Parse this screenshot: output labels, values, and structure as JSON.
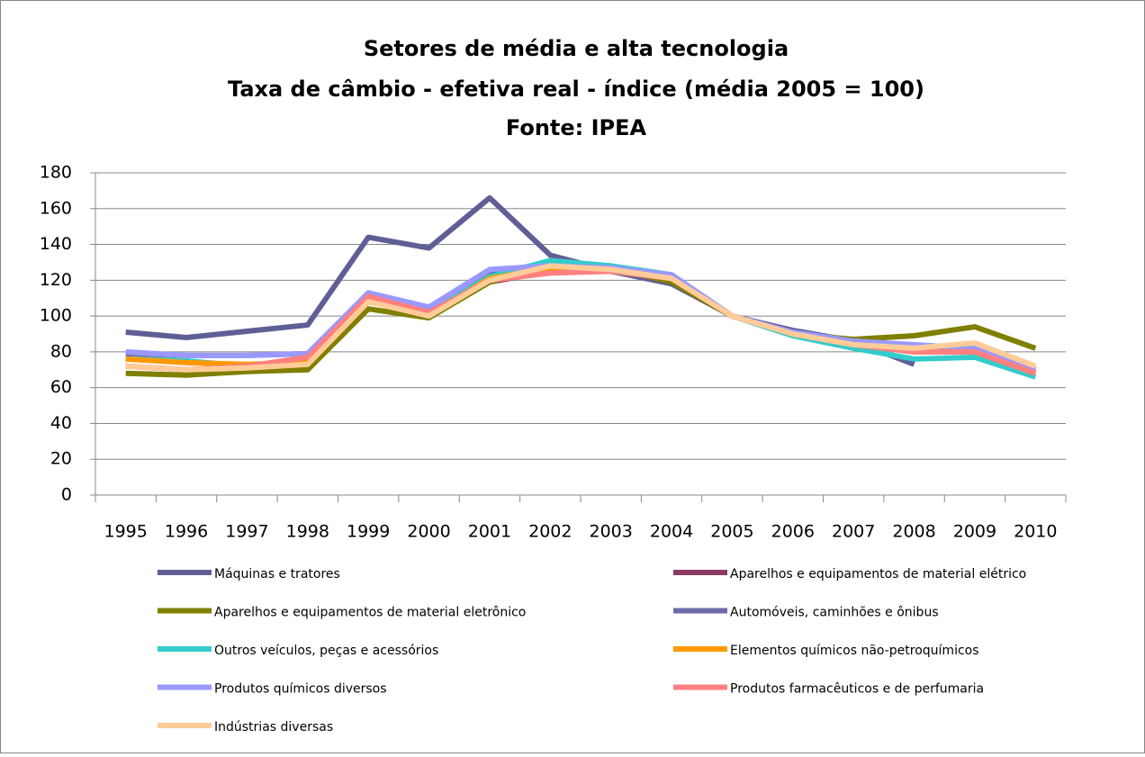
{
  "chart_data": {
    "type": "line",
    "title": [
      "Setores de média e alta tecnologia",
      "Taxa de câmbio - efetiva real - índice (média 2005 = 100)",
      "Fonte: IPEA"
    ],
    "categories": [
      "1995",
      "1996",
      "1997",
      "1998",
      "1999",
      "2000",
      "2001",
      "2002",
      "2003",
      "2004",
      "2005",
      "2006",
      "2007",
      "2008",
      "2009",
      "2010"
    ],
    "ylim": [
      0,
      180
    ],
    "yticks": [
      0,
      20,
      40,
      60,
      80,
      100,
      120,
      140,
      160,
      180
    ],
    "grid": true,
    "series": [
      {
        "name": "Máquinas e  tratores",
        "color": "#5f5f96",
        "values": [
          91,
          88,
          91.5,
          95,
          144,
          138,
          166,
          134,
          125,
          118,
          100,
          92,
          86,
          73,
          null,
          null
        ]
      },
      {
        "name": "Aparelhos e equipamentos de material elétrico",
        "color": "#8b3a62",
        "values": [
          72,
          70,
          71,
          74,
          109,
          100,
          119,
          125,
          126,
          121,
          100,
          90,
          84,
          80,
          80,
          68
        ]
      },
      {
        "name": "Aparelhos e equipamentos  de material eletrônico",
        "color": "#7f7f00",
        "values": [
          68,
          67,
          69,
          70,
          104,
          99,
          119,
          128,
          127,
          119,
          100,
          90,
          87,
          89,
          94,
          82
        ]
      },
      {
        "name": "Automóveis, caminhões e  ônibus",
        "color": "#6b6ba8",
        "values": [
          79,
          78,
          78,
          79,
          112,
          104,
          125,
          129,
          128,
          123,
          100,
          90,
          86,
          82,
          82,
          70
        ]
      },
      {
        "name": "Outros veículos, peças e  acessórios",
        "color": "#33cccc",
        "values": [
          76,
          75,
          72,
          76,
          111,
          102,
          122,
          131,
          128,
          123,
          100,
          89,
          82,
          76,
          77,
          66
        ]
      },
      {
        "name": "Elementos químicos não-petroquímicos",
        "color": "#ff9900",
        "values": [
          76,
          74,
          73,
          74,
          108,
          101,
          121,
          127,
          126,
          121,
          100,
          90,
          84,
          80,
          80,
          68
        ]
      },
      {
        "name": "Produtos químicos diversos",
        "color": "#9999ff",
        "values": [
          80,
          78,
          78,
          79,
          113,
          105,
          126,
          128,
          127,
          123,
          100,
          91,
          86,
          84,
          82,
          70
        ]
      },
      {
        "name": "Produtos farmacêuticos e  de perfumaria",
        "color": "#ff8080",
        "values": [
          72,
          70,
          72,
          77,
          111,
          102,
          120,
          124,
          125,
          121,
          100,
          90,
          84,
          80,
          80,
          68
        ]
      },
      {
        "name": "Indústrias diversas",
        "color": "#ffcc99",
        "values": [
          72,
          70,
          71,
          73,
          108,
          100,
          120,
          128,
          126,
          121,
          100,
          90,
          84,
          82,
          85,
          72
        ]
      }
    ]
  }
}
